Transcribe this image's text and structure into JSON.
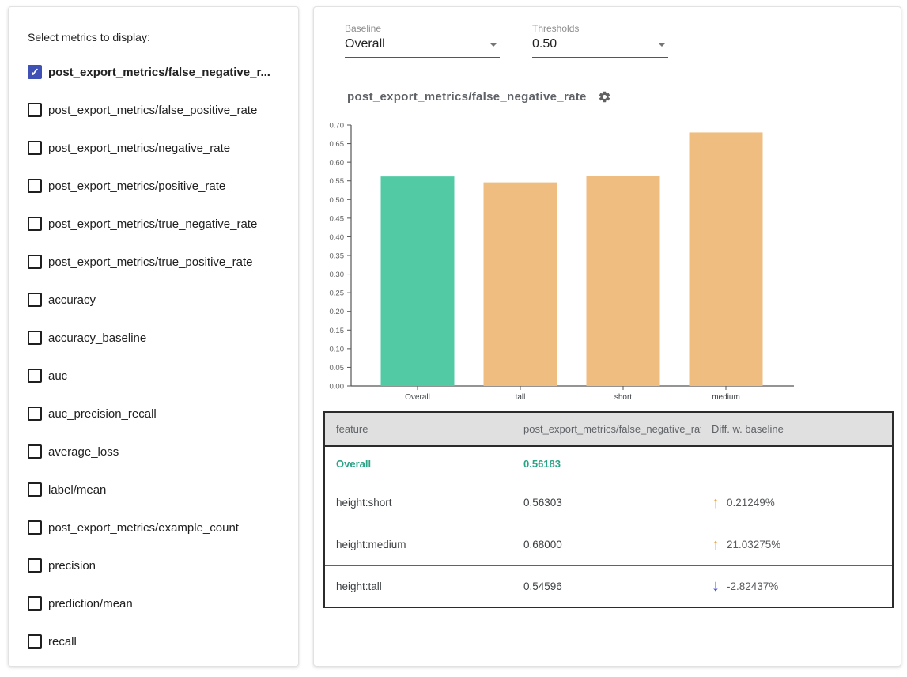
{
  "sidebar": {
    "title": "Select metrics to display:",
    "items": [
      {
        "label": "post_export_metrics/false_negative_r...",
        "checked": true
      },
      {
        "label": "post_export_metrics/false_positive_rate",
        "checked": false
      },
      {
        "label": "post_export_metrics/negative_rate",
        "checked": false
      },
      {
        "label": "post_export_metrics/positive_rate",
        "checked": false
      },
      {
        "label": "post_export_metrics/true_negative_rate",
        "checked": false
      },
      {
        "label": "post_export_metrics/true_positive_rate",
        "checked": false
      },
      {
        "label": "accuracy",
        "checked": false
      },
      {
        "label": "accuracy_baseline",
        "checked": false
      },
      {
        "label": "auc",
        "checked": false
      },
      {
        "label": "auc_precision_recall",
        "checked": false
      },
      {
        "label": "average_loss",
        "checked": false
      },
      {
        "label": "label/mean",
        "checked": false
      },
      {
        "label": "post_export_metrics/example_count",
        "checked": false
      },
      {
        "label": "precision",
        "checked": false
      },
      {
        "label": "prediction/mean",
        "checked": false
      },
      {
        "label": "recall",
        "checked": false
      }
    ]
  },
  "controls": {
    "baseline": {
      "label": "Baseline",
      "value": "Overall"
    },
    "thresholds": {
      "label": "Thresholds",
      "value": "0.50"
    }
  },
  "chart": {
    "title": "post_export_metrics/false_negative_rate"
  },
  "chart_data": {
    "type": "bar",
    "title": "post_export_metrics/false_negative_rate",
    "categories": [
      "Overall",
      "tall",
      "short",
      "medium"
    ],
    "values": [
      0.56183,
      0.54596,
      0.56303,
      0.68
    ],
    "bar_colors": [
      "#52CBA4",
      "#F0BD80",
      "#F0BD80",
      "#F0BD80"
    ],
    "xlabel": "",
    "ylabel": "",
    "ylim": [
      0,
      0.7
    ],
    "ytick_step": 0.05,
    "grid": false,
    "legend": "none"
  },
  "table": {
    "columns": [
      "feature",
      "post_export_metrics/false_negative_rat...",
      "Diff. w. baseline"
    ],
    "rows": [
      {
        "feature": "Overall",
        "value": "0.56183",
        "diff": "",
        "direction": "none",
        "highlight": true
      },
      {
        "feature": "height:short",
        "value": "0.56303",
        "diff": "0.21249%",
        "direction": "up",
        "highlight": false
      },
      {
        "feature": "height:medium",
        "value": "0.68000",
        "diff": "21.03275%",
        "direction": "up",
        "highlight": false
      },
      {
        "feature": "height:tall",
        "value": "0.54596",
        "diff": "-2.82437%",
        "direction": "down",
        "highlight": false
      }
    ]
  },
  "icons": {
    "checkbox_check": "✓",
    "arrow_up": "↑",
    "arrow_down": "↓",
    "settings_gear": "gear",
    "dropdown_caret": "▾"
  },
  "colors": {
    "checkbox_checked": "#3F51B5",
    "baseline_bar": "#52CBA4",
    "slice_bar": "#F0BD80",
    "highlight_text": "#2AA387",
    "up_arrow": "#F2A53C",
    "down_arrow": "#3646E6",
    "table_header_bg": "#e0e0e0"
  }
}
